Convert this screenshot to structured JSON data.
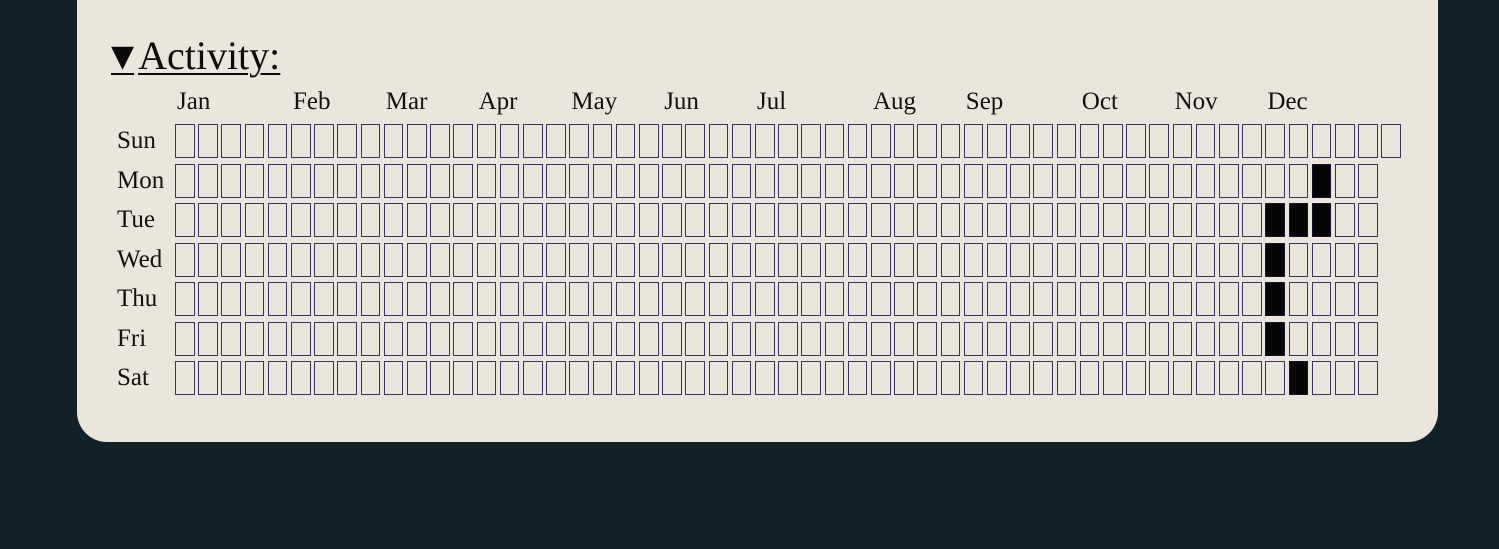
{
  "heading": {
    "toggle_icon": "▼",
    "title": "Activity:"
  },
  "months": [
    "Jan",
    "Feb",
    "Mar",
    "Apr",
    "May",
    "Jun",
    "Jul",
    "Aug",
    "Sep",
    "Oct",
    "Nov",
    "Dec"
  ],
  "month_start_weeks": [
    0,
    5,
    9,
    13,
    17,
    21,
    25,
    30,
    34,
    39,
    43,
    47
  ],
  "days": [
    "Sun",
    "Mon",
    "Tue",
    "Wed",
    "Thu",
    "Fri",
    "Sat"
  ],
  "weeks": 53,
  "row_week_counts": [
    53,
    52,
    52,
    52,
    52,
    52,
    52
  ],
  "active_cells": [
    {
      "week": 49,
      "day": 1
    },
    {
      "week": 47,
      "day": 2
    },
    {
      "week": 48,
      "day": 2
    },
    {
      "week": 49,
      "day": 2
    },
    {
      "week": 47,
      "day": 3
    },
    {
      "week": 47,
      "day": 4
    },
    {
      "week": 47,
      "day": 5
    },
    {
      "week": 48,
      "day": 6
    }
  ],
  "colors": {
    "background": "#122127",
    "panel": "#ebe6db",
    "cell_border": "#3b3363",
    "cell_active": "#050505"
  }
}
